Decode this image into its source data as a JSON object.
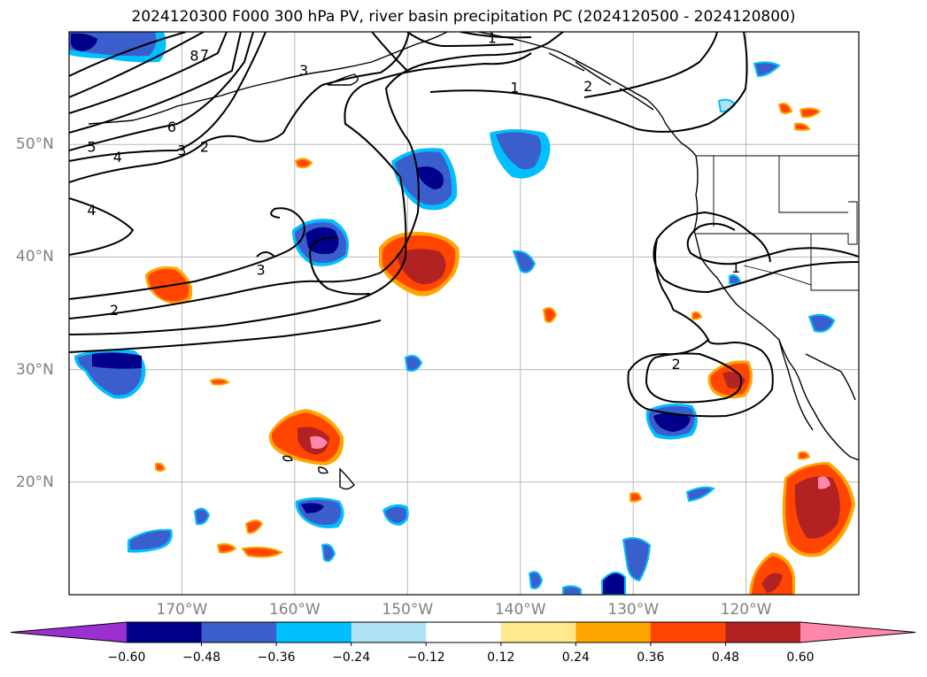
{
  "title": "2024120300 F000 300 hPa PV, river basin precipitation PC (2024120500 - 2024120800)",
  "map": {
    "projection": "PlateCarree",
    "lon_range": [
      -180,
      -110
    ],
    "lat_range": [
      10,
      60
    ],
    "lon_ticks": [
      {
        "lon": -170,
        "label": "170°W"
      },
      {
        "lon": -160,
        "label": "160°W"
      },
      {
        "lon": -150,
        "label": "150°W"
      },
      {
        "lon": -140,
        "label": "140°W"
      },
      {
        "lon": -130,
        "label": "130°W"
      },
      {
        "lon": -120,
        "label": "120°W"
      }
    ],
    "lat_ticks": [
      {
        "lat": 50,
        "label": "50°N"
      },
      {
        "lat": 40,
        "label": "40°N"
      },
      {
        "lat": 30,
        "label": "30°N"
      },
      {
        "lat": 20,
        "label": "20°N"
      }
    ],
    "grid": true,
    "contour_color": "#000000",
    "contour_labels": [
      {
        "text": "1",
        "lon": -142.5,
        "lat": 59.5
      },
      {
        "text": "1",
        "lon": -140.5,
        "lat": 55.1
      },
      {
        "text": "2",
        "lon": -134.0,
        "lat": 55.2
      },
      {
        "text": "1",
        "lon": -120.9,
        "lat": 39.1
      },
      {
        "text": "2",
        "lon": -126.2,
        "lat": 30.5
      },
      {
        "text": "8",
        "lon": -168.9,
        "lat": 57.9
      },
      {
        "text": "7",
        "lon": -168.0,
        "lat": 58.0
      },
      {
        "text": "6",
        "lon": -170.9,
        "lat": 51.6
      },
      {
        "text": "5",
        "lon": -178.0,
        "lat": 49.8
      },
      {
        "text": "4",
        "lon": -175.7,
        "lat": 48.9
      },
      {
        "text": "3",
        "lon": -170.0,
        "lat": 49.5
      },
      {
        "text": "2",
        "lon": -168.0,
        "lat": 49.8
      },
      {
        "text": "4",
        "lon": -178.0,
        "lat": 44.2
      },
      {
        "text": "3",
        "lon": -163.0,
        "lat": 38.9
      },
      {
        "text": "2",
        "lon": -176.0,
        "lat": 35.3
      },
      {
        "text": "3",
        "lon": -159.2,
        "lat": 56.6
      }
    ]
  },
  "colorbar": {
    "labels": [
      "−0.60",
      "−0.48",
      "−0.36",
      "−0.24",
      "−0.12",
      "0.12",
      "0.24",
      "0.36",
      "0.48",
      "0.60"
    ],
    "colors": {
      "under": "#9b30d0",
      "bins": [
        "#00008b",
        "#3a5fcd",
        "#00bfff",
        "#aee2f5",
        "#ffffff",
        "#ffe98c",
        "#ffa500",
        "#ff4500",
        "#b22222"
      ],
      "over": "#ff88aa"
    }
  }
}
